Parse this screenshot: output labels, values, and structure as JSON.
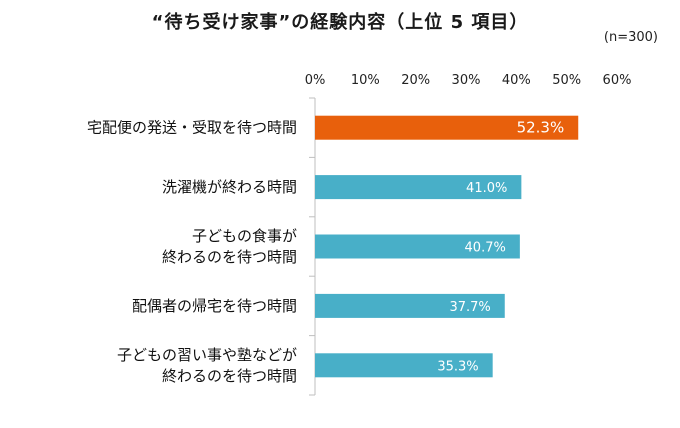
{
  "chart_data": {
    "type": "bar",
    "orientation": "horizontal",
    "title": "“待ち受け家事”の経験内容（上位 5 項目）",
    "note": "(n=300)",
    "categories": [
      [
        "宅配便の発送・受取を待つ時間"
      ],
      [
        "洗濯機が終わる時間"
      ],
      [
        "子どもの食事が",
        "終わるのを待つ時間"
      ],
      [
        "配偶者の帰宅を待つ時間"
      ],
      [
        "子どもの習い事や塾などが",
        "終わるのを待つ時間"
      ]
    ],
    "values": [
      52.3,
      41.0,
      40.7,
      37.7,
      35.3
    ],
    "value_labels": [
      "52.3%",
      "41.0%",
      "40.7%",
      "37.7%",
      "35.3%"
    ],
    "xlim": [
      0,
      60
    ],
    "ticks": [
      0,
      10,
      20,
      30,
      40,
      50,
      60
    ],
    "tick_labels": [
      "0%",
      "10%",
      "20%",
      "30%",
      "40%",
      "50%",
      "60%"
    ],
    "grid": false,
    "colors": {
      "highlight": "#E8600C",
      "default": "#48AFC8",
      "axis": "#bfbfbf"
    }
  }
}
